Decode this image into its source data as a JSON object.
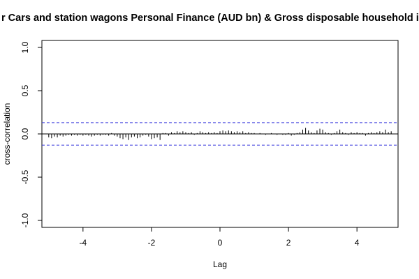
{
  "chart_data": {
    "type": "bar",
    "title": "Cars and station wagons Personal Finance (AUD bn) & Gross disposable household income",
    "title_visible": "r Cars and station wagons Personal Finance (AUD bn) & Gross disposable household inc",
    "xlabel": "Lag",
    "ylabel": "cross-correlation",
    "xlim": [
      -5.2,
      5.2
    ],
    "ylim": [
      -1.0,
      1.0
    ],
    "x_ticks": [
      -4,
      -2,
      0,
      2,
      4
    ],
    "x_tick_labels": [
      "-4",
      "-2",
      "0",
      "2",
      "4"
    ],
    "y_ticks": [
      -1.0,
      -0.5,
      0.0,
      0.5,
      1.0
    ],
    "y_tick_labels": [
      "-1.0",
      "-0.5",
      "0.0",
      "0.5",
      "1.0"
    ],
    "confidence_bounds": [
      0.13,
      -0.13
    ],
    "confidence_color": "#3b3bde",
    "series": [
      {
        "x": [
          -5.0,
          -4.9167,
          -4.8333,
          -4.75,
          -4.6667,
          -4.5833,
          -4.5,
          -4.4167,
          -4.3333,
          -4.25,
          -4.1667,
          -4.0833,
          -4.0,
          -3.9167,
          -3.8333,
          -3.75,
          -3.6667,
          -3.5833,
          -3.5,
          -3.4167,
          -3.3333,
          -3.25,
          -3.1667,
          -3.0833,
          -3.0,
          -2.9167,
          -2.8333,
          -2.75,
          -2.6667,
          -2.5833,
          -2.5,
          -2.4167,
          -2.3333,
          -2.25,
          -2.1667,
          -2.0833,
          -2.0,
          -1.9167,
          -1.8333,
          -1.75,
          -1.6667,
          -1.5833,
          -1.5,
          -1.4167,
          -1.3333,
          -1.25,
          -1.1667,
          -1.0833,
          -1.0,
          -0.9167,
          -0.8333,
          -0.75,
          -0.6667,
          -0.5833,
          -0.5,
          -0.4167,
          -0.3333,
          -0.25,
          -0.1667,
          -0.0833,
          0.0,
          0.0833,
          0.1667,
          0.25,
          0.3333,
          0.4167,
          0.5,
          0.5833,
          0.6667,
          0.75,
          0.8333,
          0.9167,
          1.0,
          1.0833,
          1.1667,
          1.25,
          1.3333,
          1.4167,
          1.5,
          1.5833,
          1.6667,
          1.75,
          1.8333,
          1.9167,
          2.0,
          2.0833,
          2.1667,
          2.25,
          2.3333,
          2.4167,
          2.5,
          2.5833,
          2.6667,
          2.75,
          2.8333,
          2.9167,
          3.0,
          3.0833,
          3.1667,
          3.25,
          3.3333,
          3.4167,
          3.5,
          3.5833,
          3.6667,
          3.75,
          3.8333,
          3.9167,
          4.0,
          4.0833,
          4.1667,
          4.25,
          4.3333,
          4.4167,
          4.5,
          4.5833,
          4.6667,
          4.75,
          4.8333,
          4.9167,
          5.0
        ],
        "values": [
          -0.04,
          -0.05,
          -0.03,
          -0.04,
          -0.02,
          -0.03,
          -0.02,
          -0.01,
          -0.02,
          -0.01,
          -0.02,
          -0.01,
          -0.02,
          -0.01,
          -0.02,
          -0.03,
          -0.02,
          -0.01,
          -0.02,
          -0.01,
          -0.01,
          -0.02,
          0.01,
          -0.02,
          -0.03,
          -0.05,
          -0.06,
          -0.04,
          -0.07,
          -0.04,
          -0.03,
          -0.05,
          -0.04,
          -0.02,
          -0.01,
          -0.03,
          -0.06,
          -0.05,
          -0.04,
          -0.07,
          0.01,
          0.01,
          -0.02,
          0.02,
          0.01,
          0.03,
          0.02,
          0.03,
          0.02,
          0.01,
          0.02,
          -0.01,
          0.01,
          0.03,
          0.02,
          0.01,
          0.02,
          0.01,
          0.02,
          0.01,
          0.03,
          0.04,
          0.03,
          0.04,
          0.03,
          0.02,
          0.03,
          0.02,
          0.03,
          0.01,
          0.02,
          0.01,
          0.01,
          0.0,
          0.01,
          0.0,
          -0.01,
          0.0,
          0.01,
          0.0,
          -0.01,
          0.0,
          -0.01,
          -0.01,
          0.01,
          -0.02,
          -0.01,
          0.01,
          0.02,
          0.05,
          0.07,
          0.04,
          0.02,
          0.01,
          0.04,
          0.06,
          0.05,
          0.02,
          0.01,
          -0.01,
          0.01,
          0.03,
          0.05,
          0.02,
          0.01,
          -0.01,
          0.02,
          0.01,
          0.02,
          0.01,
          0.01,
          -0.02,
          0.01,
          0.02,
          0.01,
          0.02,
          0.03,
          0.02,
          0.05,
          0.02,
          0.03
        ]
      }
    ]
  }
}
